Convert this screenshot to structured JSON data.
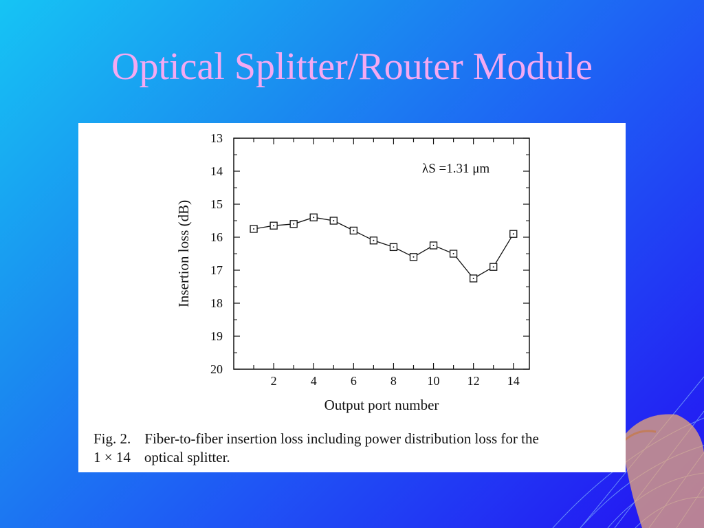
{
  "slide": {
    "title": "Optical Splitter/Router Module"
  },
  "caption": {
    "fig_label": "Fig. 2.",
    "line1": "Fiber-to-fiber insertion loss including power distribution loss for the",
    "dims": "1 × 14",
    "line2": "optical splitter."
  },
  "colors": {
    "title": "#f4a9f2",
    "background_start": "#16c4f4",
    "background_end": "#2410f2"
  },
  "chart_data": {
    "type": "line",
    "xlabel": "Output port number",
    "ylabel": "Insertion loss (dB)",
    "annotation": "λS =1.31 μm",
    "xlim": [
      0,
      14.8
    ],
    "ylim": [
      13,
      20
    ],
    "y_inverted": true,
    "xticks": [
      2,
      4,
      6,
      8,
      10,
      12,
      14
    ],
    "yticks": [
      13,
      14,
      15,
      16,
      17,
      18,
      19,
      20
    ],
    "marker": "square",
    "grid": false,
    "series": [
      {
        "x": [
          1,
          2,
          3,
          4,
          5,
          6,
          7,
          8,
          9,
          10,
          11,
          12,
          13,
          14
        ],
        "values": [
          15.75,
          15.65,
          15.6,
          15.4,
          15.5,
          15.8,
          16.1,
          16.3,
          16.6,
          16.25,
          16.5,
          17.25,
          16.9,
          15.9
        ]
      }
    ]
  }
}
